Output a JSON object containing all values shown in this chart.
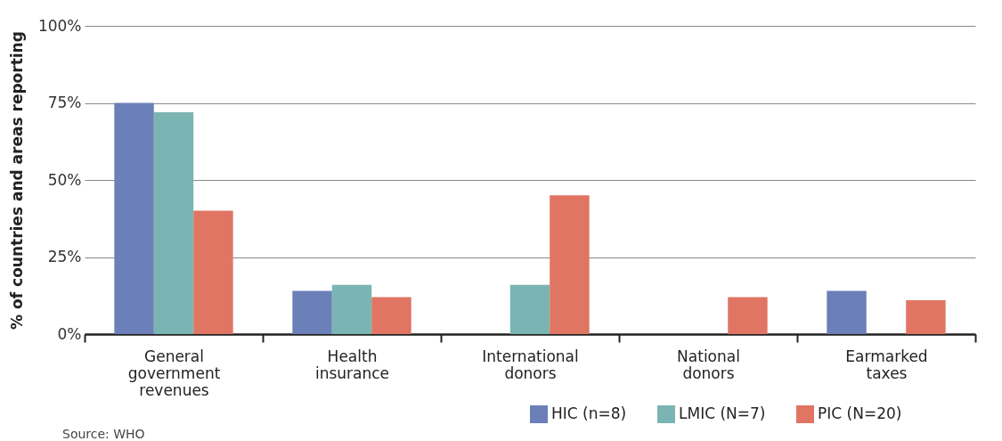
{
  "chart_data": {
    "type": "bar",
    "categories": [
      "General government revenues",
      "Health insurance",
      "International donors",
      "National donors",
      "Earmarked taxes"
    ],
    "series": [
      {
        "name": "HIC (n=8)",
        "color": "#6b7fb9",
        "values": [
          75,
          14,
          0,
          0,
          14
        ]
      },
      {
        "name": "LMIC (N=7)",
        "color": "#7ab5b3",
        "values": [
          72,
          16,
          16,
          0,
          0
        ]
      },
      {
        "name": "PIC (N=20)",
        "color": "#e07563",
        "values": [
          40,
          12,
          45,
          12,
          11
        ]
      }
    ],
    "ylabel": "% of countries and areas reporting",
    "ylim": [
      0,
      100
    ],
    "yticks": [
      {
        "value": 0,
        "label": "0%"
      },
      {
        "value": 25,
        "label": "25%"
      },
      {
        "value": 50,
        "label": "50%"
      },
      {
        "value": 75,
        "label": "75%"
      },
      {
        "value": 100,
        "label": "100%"
      }
    ],
    "grid": "y",
    "legend": "bottom right",
    "annotations": [
      "Source: WHO"
    ]
  }
}
